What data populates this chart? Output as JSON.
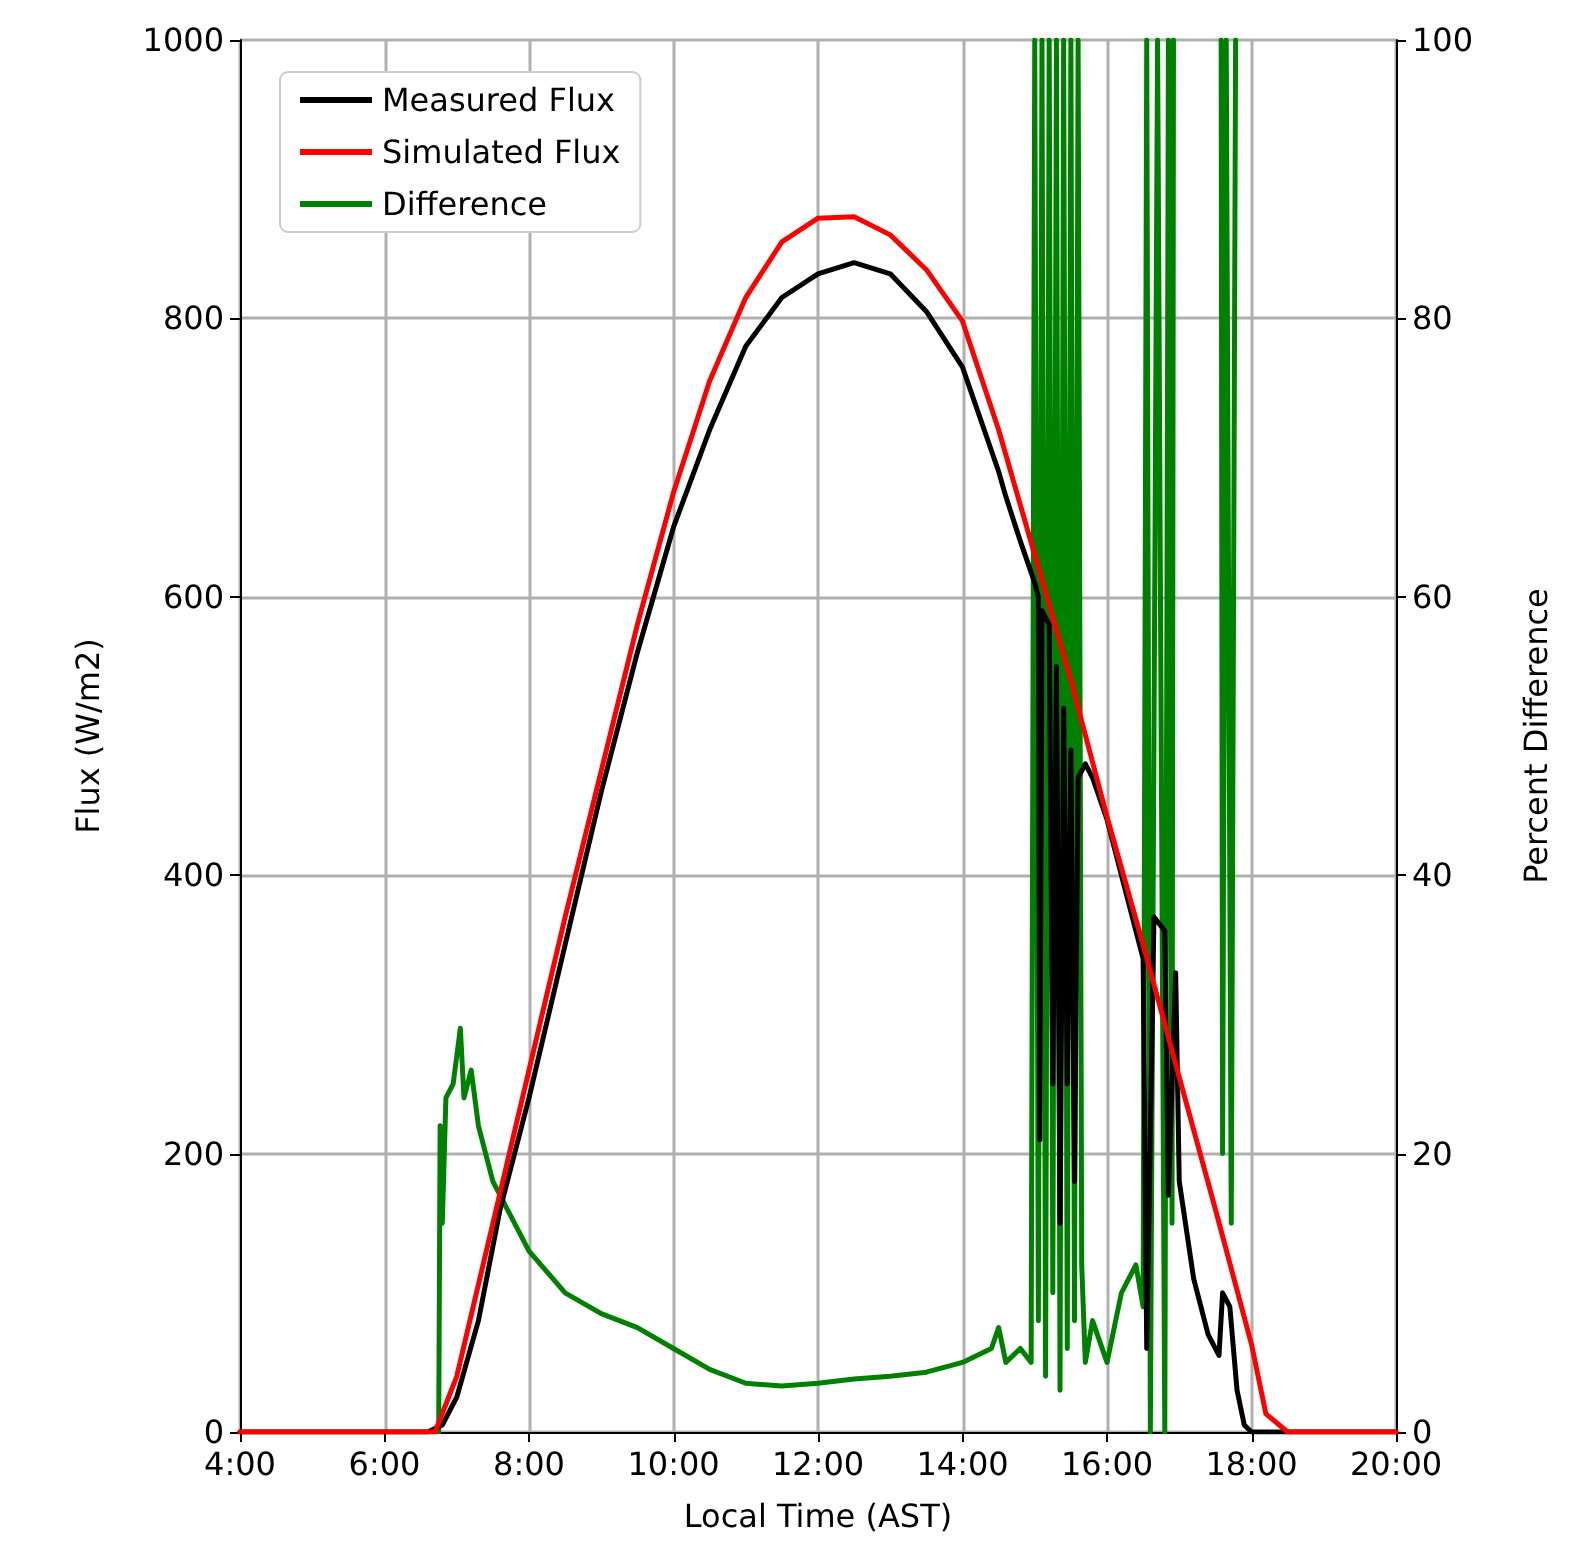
{
  "chart_data": {
    "type": "line",
    "xlabel": "Local Time (AST)",
    "ylabel": "Flux (W/m2)",
    "y2label": "Percent Difference",
    "xlim": [
      4,
      20
    ],
    "xticks": [
      {
        "value": 4,
        "label": "4:00"
      },
      {
        "value": 6,
        "label": "6:00"
      },
      {
        "value": 8,
        "label": "8:00"
      },
      {
        "value": 10,
        "label": "10:00"
      },
      {
        "value": 12,
        "label": "12:00"
      },
      {
        "value": 14,
        "label": "14:00"
      },
      {
        "value": 16,
        "label": "16:00"
      },
      {
        "value": 18,
        "label": "18:00"
      },
      {
        "value": 20,
        "label": "20:00"
      }
    ],
    "ylim": [
      0,
      1000
    ],
    "yticks": [
      0,
      200,
      400,
      600,
      800,
      1000
    ],
    "y2lim": [
      0,
      100
    ],
    "y2ticks": [
      0,
      20,
      40,
      60,
      80,
      100
    ],
    "grid": true,
    "legend": "top left",
    "marker": "none",
    "line_style": "solid",
    "series": [
      {
        "name": "Measured Flux",
        "color": "#000000",
        "x": [
          4,
          6.6,
          6.8,
          7,
          7.3,
          7.6,
          8,
          8.5,
          9,
          9.5,
          10,
          10.5,
          11,
          11.5,
          12,
          12.5,
          13,
          13.5,
          14,
          14.3,
          14.5,
          14.6,
          14.8,
          15,
          15.05,
          15.07,
          15.1,
          15.2,
          15.25,
          15.3,
          15.35,
          15.4,
          15.45,
          15.5,
          15.55,
          15.6,
          15.7,
          15.8,
          16,
          16.3,
          16.5,
          16.55,
          16.65,
          16.8,
          16.85,
          16.95,
          17,
          17.2,
          17.4,
          17.55,
          17.6,
          17.7,
          17.8,
          17.9,
          18,
          20
        ],
        "values": [
          0,
          0,
          5,
          25,
          80,
          160,
          240,
          350,
          460,
          560,
          650,
          720,
          780,
          815,
          832,
          840,
          832,
          805,
          765,
          720,
          690,
          672,
          640,
          610,
          600,
          210,
          590,
          580,
          250,
          550,
          150,
          520,
          250,
          490,
          180,
          470,
          480,
          470,
          440,
          380,
          340,
          60,
          370,
          360,
          170,
          330,
          180,
          110,
          70,
          55,
          100,
          90,
          30,
          5,
          0,
          0
        ]
      },
      {
        "name": "Simulated Flux",
        "color": "#ff0000",
        "x": [
          4,
          6.7,
          7,
          7.5,
          8,
          8.5,
          9,
          9.5,
          10,
          10.5,
          11,
          11.5,
          12,
          12.5,
          13,
          13.5,
          14,
          14.5,
          15,
          15.5,
          16,
          16.5,
          17,
          17.5,
          18,
          18.2,
          18.5,
          20
        ],
        "values": [
          0,
          0,
          40,
          150,
          260,
          370,
          475,
          580,
          675,
          755,
          815,
          855,
          872,
          873,
          860,
          835,
          798,
          720,
          630,
          540,
          442,
          350,
          255,
          160,
          63,
          13,
          0,
          0
        ]
      },
      {
        "name": "Difference",
        "color": "#008000",
        "axis": "y2",
        "x": [
          6.75,
          6.77,
          6.8,
          6.85,
          6.95,
          7.05,
          7.1,
          7.2,
          7.3,
          7.5,
          7.7,
          8,
          8.5,
          9,
          9.5,
          10,
          10.5,
          11,
          11.5,
          12,
          12.5,
          13,
          13.5,
          14,
          14.4,
          14.5,
          14.6,
          14.8,
          14.95,
          15,
          15.05,
          15.1,
          15.15,
          15.2,
          15.25,
          15.3,
          15.35,
          15.4,
          15.45,
          15.5,
          15.55,
          15.6,
          15.65,
          15.7,
          15.8,
          16,
          16.2,
          16.4,
          16.5,
          16.55,
          16.6,
          16.7,
          16.8,
          16.85,
          16.9,
          16.92,
          17.5,
          17.58,
          17.6,
          17.65,
          17.72,
          17.78
        ],
        "values": [
          0,
          22,
          15,
          24,
          25,
          29,
          24,
          26,
          22,
          18,
          16,
          13,
          10,
          8.5,
          7.5,
          6,
          4.5,
          3.5,
          3.3,
          3.5,
          3.8,
          4,
          4.3,
          5,
          6,
          7.5,
          5,
          6,
          5,
          100,
          8,
          100,
          4,
          100,
          10,
          100,
          3,
          100,
          6,
          100,
          8,
          100,
          12,
          5,
          8,
          5,
          10,
          12,
          9,
          100,
          0,
          100,
          0,
          100,
          15,
          100,
          null,
          100,
          20,
          100,
          15,
          100
        ]
      }
    ]
  }
}
